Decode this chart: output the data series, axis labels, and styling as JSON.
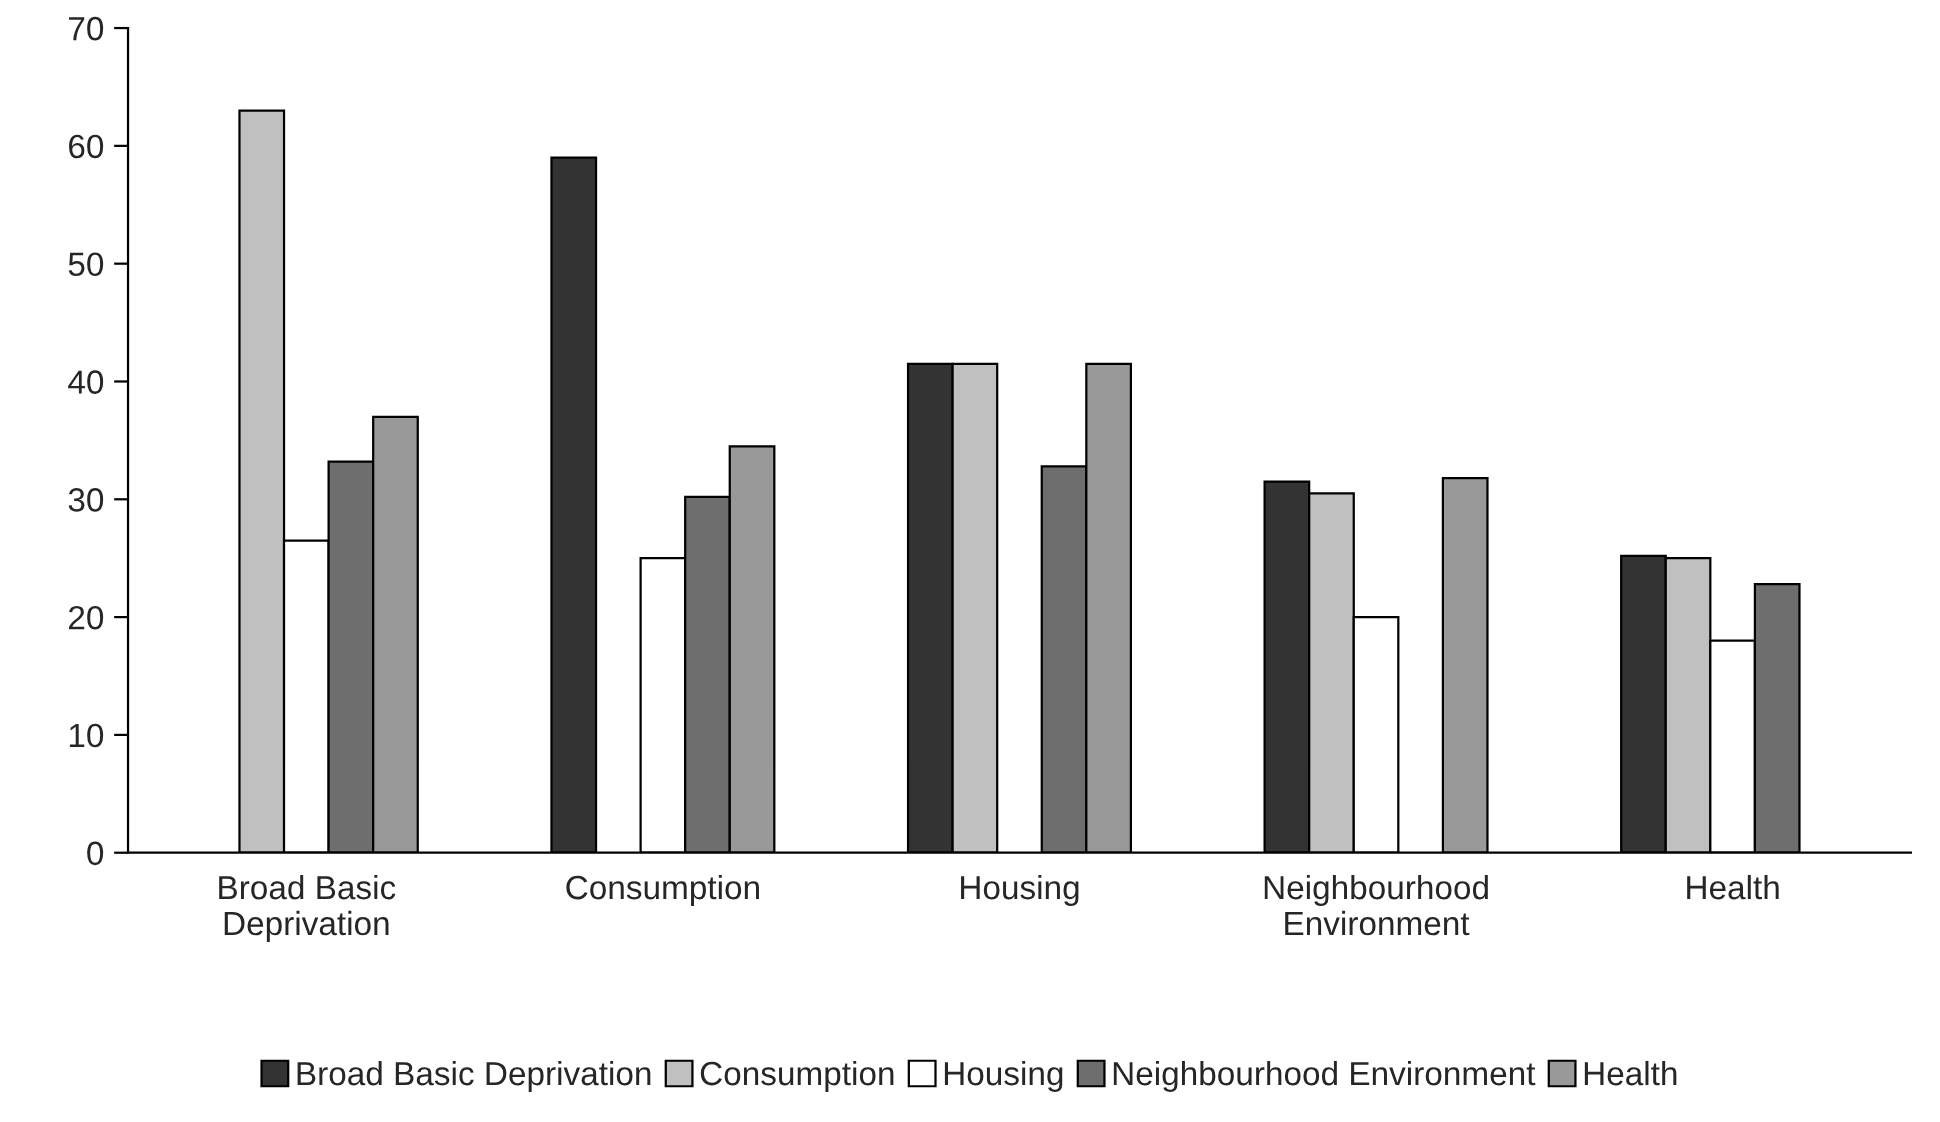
{
  "chart_data": {
    "type": "bar",
    "categories": [
      "Broad Basic\nDeprivation",
      "Consumption",
      "Housing",
      "Neighbourhood\nEnvironment",
      "Health"
    ],
    "series": [
      {
        "name": "Broad Basic Deprivation",
        "color": "#333333",
        "values": [
          null,
          59,
          41.5,
          31.5,
          25.2
        ]
      },
      {
        "name": "Consumption",
        "color": "#c0c0c0",
        "values": [
          63,
          null,
          41.5,
          30.5,
          25
        ]
      },
      {
        "name": "Housing",
        "color": "#ffffff",
        "values": [
          26.5,
          25,
          null,
          20,
          18
        ]
      },
      {
        "name": "Neighbourhood Environment",
        "color": "#6e6e6e",
        "values": [
          33.2,
          30.2,
          32.8,
          null,
          22.8
        ]
      },
      {
        "name": "Health",
        "color": "#999999",
        "values": [
          37,
          34.5,
          41.5,
          31.8,
          null
        ]
      }
    ],
    "ylim": [
      0,
      70
    ],
    "yticks": [
      0,
      10,
      20,
      30,
      40,
      50,
      60,
      70
    ],
    "grid": false,
    "legend": "bottom"
  }
}
